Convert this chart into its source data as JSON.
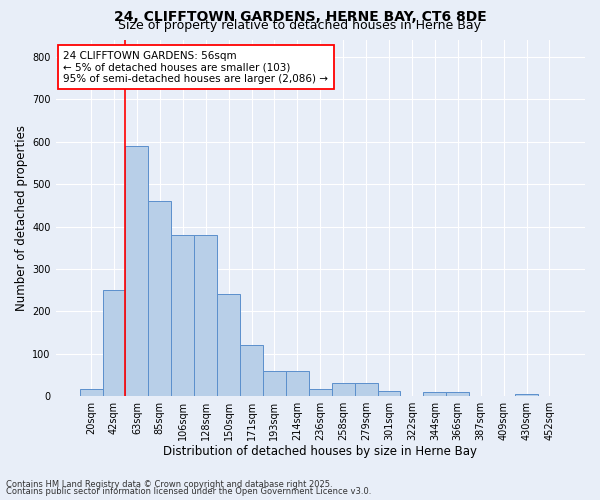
{
  "title1": "24, CLIFFTOWN GARDENS, HERNE BAY, CT6 8DE",
  "title2": "Size of property relative to detached houses in Herne Bay",
  "xlabel": "Distribution of detached houses by size in Herne Bay",
  "ylabel": "Number of detached properties",
  "categories": [
    "20sqm",
    "42sqm",
    "63sqm",
    "85sqm",
    "106sqm",
    "128sqm",
    "150sqm",
    "171sqm",
    "193sqm",
    "214sqm",
    "236sqm",
    "258sqm",
    "279sqm",
    "301sqm",
    "322sqm",
    "344sqm",
    "366sqm",
    "387sqm",
    "409sqm",
    "430sqm",
    "452sqm"
  ],
  "values": [
    17,
    250,
    590,
    460,
    380,
    380,
    240,
    120,
    60,
    60,
    17,
    30,
    30,
    11,
    0,
    10,
    10,
    0,
    0,
    5,
    0
  ],
  "bar_color": "#b8cfe8",
  "bar_edge_color": "#5b8fcc",
  "vline_color": "red",
  "vline_pos": 1.5,
  "annotation_text": "24 CLIFFTOWN GARDENS: 56sqm\n← 5% of detached houses are smaller (103)\n95% of semi-detached houses are larger (2,086) →",
  "annotation_box_color": "white",
  "annotation_box_edge_color": "red",
  "ylim": [
    0,
    840
  ],
  "yticks": [
    0,
    100,
    200,
    300,
    400,
    500,
    600,
    700,
    800
  ],
  "footnote1": "Contains HM Land Registry data © Crown copyright and database right 2025.",
  "footnote2": "Contains public sector information licensed under the Open Government Licence v3.0.",
  "background_color": "#e8eef8",
  "grid_color": "white",
  "title_fontsize": 10,
  "subtitle_fontsize": 9,
  "axis_label_fontsize": 8.5,
  "tick_fontsize": 7,
  "annot_fontsize": 7.5,
  "footnote_fontsize": 6
}
